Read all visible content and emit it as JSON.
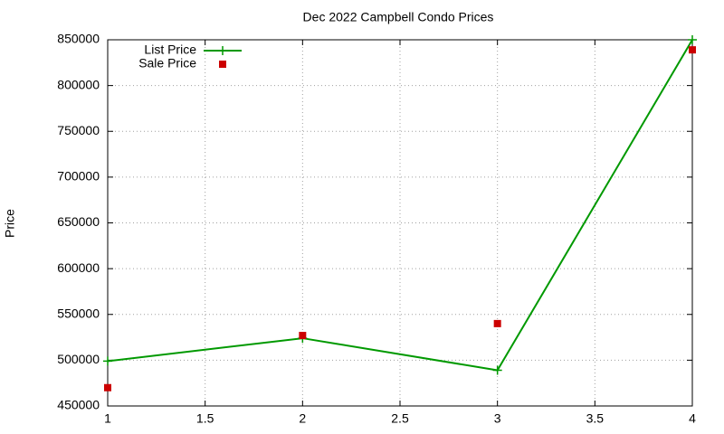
{
  "chart_data": {
    "type": "line",
    "title": "Dec 2022 Campbell Condo Prices",
    "y_label": "Price",
    "x": [
      1,
      2,
      3,
      4
    ],
    "series": [
      {
        "name": "List Price",
        "color": "#009900",
        "style": "linespoints",
        "marker": "plus",
        "values": [
          499000,
          524000,
          489000,
          850000
        ]
      },
      {
        "name": "Sale Price",
        "color": "#cc0000",
        "style": "points",
        "marker": "square",
        "values": [
          470000,
          527000,
          540000,
          839000
        ]
      }
    ],
    "xlim": [
      1,
      4
    ],
    "xticks": [
      1,
      1.5,
      2,
      2.5,
      3,
      3.5,
      4
    ],
    "ylim": [
      450000,
      850000
    ],
    "yticks": [
      450000,
      500000,
      550000,
      600000,
      650000,
      700000,
      750000,
      800000,
      850000
    ],
    "grid": true,
    "legend": "top-left"
  }
}
